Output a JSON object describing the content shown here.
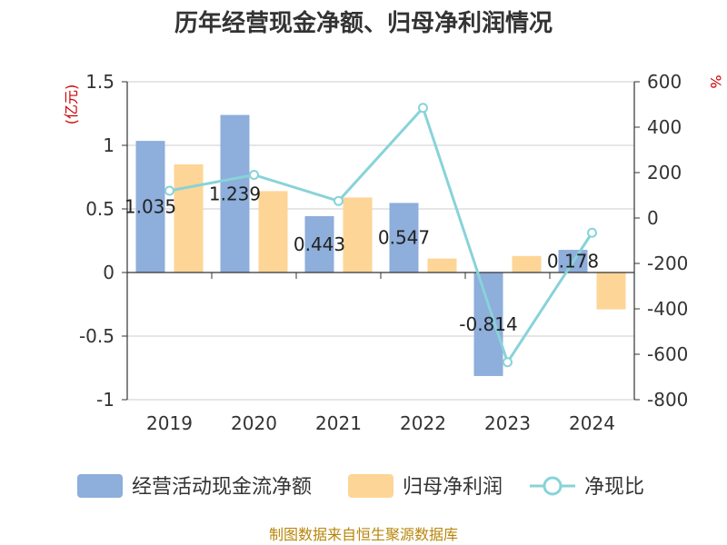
{
  "chart_data": {
    "type": "bar",
    "title": "历年经营现金净额、归母净利润情况",
    "categories": [
      "2019",
      "2020",
      "2021",
      "2022",
      "2023",
      "2024"
    ],
    "left_axis": {
      "unit": "(亿元)",
      "ylim": [
        -1,
        1.5
      ],
      "ticks": [
        "1.5",
        "1",
        "0.5",
        "0",
        "-0.5",
        "-1"
      ],
      "tick_values": [
        1.5,
        1,
        0.5,
        0,
        -0.5,
        -1
      ]
    },
    "right_axis": {
      "unit": "%",
      "ylim": [
        -800,
        600
      ],
      "ticks": [
        "600",
        "400",
        "200",
        "0",
        "-200",
        "-400",
        "-600",
        "-800"
      ],
      "tick_values": [
        600,
        400,
        200,
        0,
        -200,
        -400,
        -600,
        -800
      ]
    },
    "series": [
      {
        "name": "经营活动现金流净额",
        "type": "bar",
        "axis": "left",
        "color": "#8eaedb",
        "values": [
          1.035,
          1.239,
          0.443,
          0.547,
          -0.814,
          0.178
        ],
        "labels": [
          "1.035",
          "1.239",
          "0.443",
          "0.547",
          "-0.814",
          "0.178"
        ]
      },
      {
        "name": "归母净利润",
        "type": "bar",
        "axis": "left",
        "color": "#fdd596",
        "values": [
          0.85,
          0.64,
          0.59,
          0.11,
          0.13,
          -0.29
        ]
      },
      {
        "name": "净现比",
        "type": "line",
        "axis": "right",
        "color": "#88d3d8",
        "values": [
          120,
          190,
          75,
          485,
          -635,
          -65
        ]
      }
    ],
    "legend": "bottom",
    "source": "制图数据来自恒生聚源数据库"
  }
}
